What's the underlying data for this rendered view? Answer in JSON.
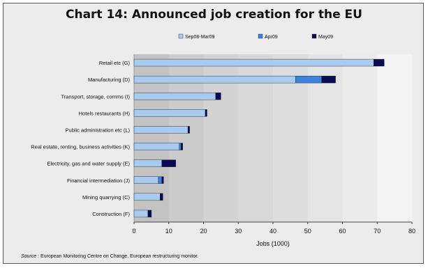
{
  "chart_data": {
    "type": "bar",
    "orientation": "horizontal",
    "stacked": true,
    "title": "Chart 14: Announced job creation for the EU",
    "xlabel": "Jobs (1000)",
    "ylabel": "",
    "xlim": [
      0,
      80
    ],
    "xticks": [
      0,
      10,
      20,
      30,
      40,
      50,
      60,
      70,
      80
    ],
    "grid": false,
    "legend_position": "top",
    "categories": [
      "Retail etc (G)",
      "Manufacturing (D)",
      "Transport, storage, comms (I)",
      "Hotels restaurants (H)",
      "Public administration etc (L)",
      "Real estate, renting, business activities (K)",
      "Electricity, gas and water supply (E)",
      "Financial intermediation (J)",
      "Mining quarrying (C)",
      "Construction (F)"
    ],
    "series": [
      {
        "name": "Sep08-Mar09",
        "color": "#a8ccf0",
        "values": [
          69,
          46.5,
          23.5,
          20.5,
          15.5,
          13,
          8,
          7,
          7.5,
          4
        ]
      },
      {
        "name": "Apr09",
        "color": "#3c82e0",
        "values": [
          0,
          7.5,
          0,
          0,
          0,
          0.5,
          0,
          1,
          0,
          0
        ]
      },
      {
        "name": "May09",
        "color": "#0b0b55",
        "values": [
          3,
          4,
          1.5,
          0.5,
          0.5,
          0.5,
          4,
          0.5,
          0.8,
          1
        ]
      }
    ]
  },
  "source": {
    "label": "Source",
    "text": " : European Monitoring Centre on Change, European restructuring monitor."
  }
}
